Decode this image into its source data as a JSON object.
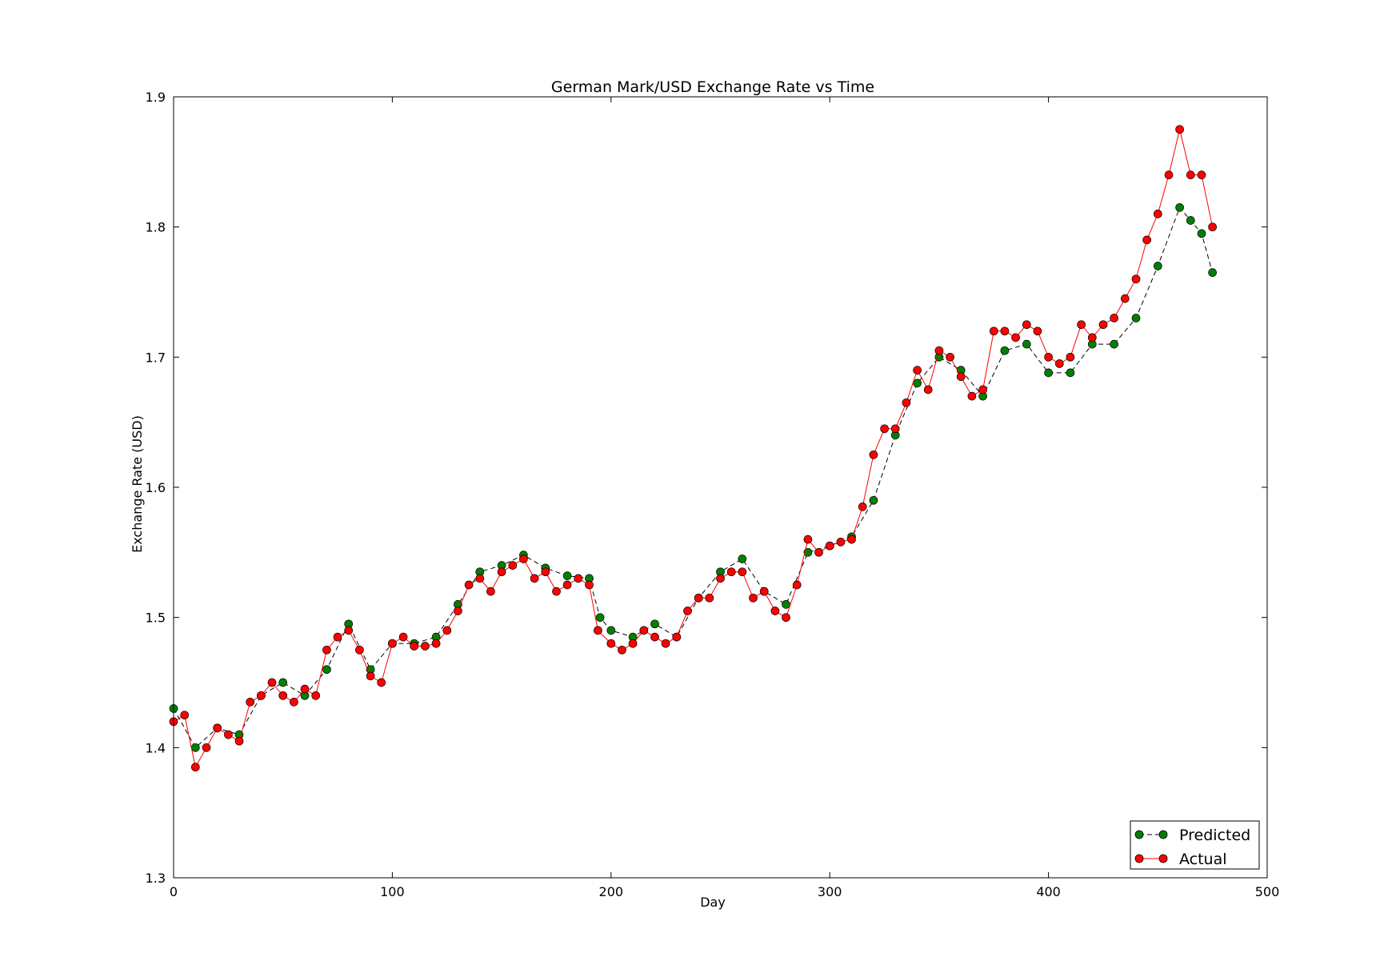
{
  "chart_data": {
    "type": "line",
    "title": "German Mark/USD Exchange Rate vs Time",
    "xlabel": "Day",
    "ylabel": "Exchange Rate (USD)",
    "xlim": [
      0,
      500
    ],
    "ylim": [
      1.3,
      1.9
    ],
    "xticks": [
      0,
      100,
      200,
      300,
      400,
      500
    ],
    "xtick_labels": [
      "0",
      "100",
      "200",
      "300",
      "400",
      "500"
    ],
    "yticks": [
      1.3,
      1.4,
      1.5,
      1.6,
      1.7,
      1.8,
      1.9
    ],
    "ytick_labels": [
      "1.3",
      "1.4",
      "1.5",
      "1.6",
      "1.7",
      "1.8",
      "1.9"
    ],
    "grid": false,
    "legend_position": "lower-right",
    "series": [
      {
        "name": "Predicted",
        "color": "#008000",
        "line_style": "dashed",
        "marker": "circle",
        "x": [
          0,
          10,
          20,
          30,
          40,
          50,
          60,
          70,
          80,
          90,
          100,
          110,
          120,
          130,
          140,
          150,
          160,
          170,
          180,
          190,
          195,
          200,
          210,
          220,
          230,
          240,
          250,
          260,
          270,
          280,
          290,
          300,
          310,
          320,
          330,
          340,
          350,
          360,
          370,
          380,
          390,
          400,
          410,
          420,
          430,
          440,
          450,
          460,
          465,
          470,
          475
        ],
        "y": [
          1.43,
          1.4,
          1.415,
          1.41,
          1.44,
          1.45,
          1.44,
          1.46,
          1.495,
          1.46,
          1.48,
          1.48,
          1.485,
          1.51,
          1.535,
          1.54,
          1.548,
          1.538,
          1.532,
          1.53,
          1.5,
          1.49,
          1.485,
          1.495,
          1.485,
          1.515,
          1.535,
          1.545,
          1.52,
          1.51,
          1.55,
          1.555,
          1.562,
          1.59,
          1.64,
          1.68,
          1.7,
          1.69,
          1.67,
          1.705,
          1.71,
          1.688,
          1.688,
          1.71,
          1.71,
          1.73,
          1.77,
          1.815,
          1.805,
          1.795,
          1.765
        ]
      },
      {
        "name": "Actual",
        "color": "#ff0000",
        "line_style": "solid",
        "marker": "circle",
        "x": [
          0,
          5,
          10,
          15,
          20,
          25,
          30,
          35,
          40,
          45,
          50,
          55,
          60,
          65,
          70,
          75,
          80,
          85,
          90,
          95,
          100,
          105,
          110,
          115,
          120,
          125,
          130,
          135,
          140,
          145,
          150,
          155,
          160,
          165,
          170,
          175,
          180,
          185,
          190,
          194,
          200,
          205,
          210,
          215,
          220,
          225,
          230,
          235,
          240,
          245,
          250,
          255,
          260,
          265,
          270,
          275,
          280,
          285,
          290,
          295,
          300,
          305,
          310,
          315,
          320,
          325,
          330,
          335,
          340,
          345,
          350,
          355,
          360,
          365,
          370,
          375,
          380,
          385,
          390,
          395,
          400,
          405,
          410,
          415,
          420,
          425,
          430,
          435,
          440,
          445,
          450,
          455,
          460,
          465,
          470,
          475
        ],
        "y": [
          1.42,
          1.425,
          1.385,
          1.4,
          1.415,
          1.41,
          1.405,
          1.435,
          1.44,
          1.45,
          1.44,
          1.435,
          1.445,
          1.44,
          1.475,
          1.485,
          1.49,
          1.475,
          1.455,
          1.45,
          1.48,
          1.485,
          1.478,
          1.478,
          1.48,
          1.49,
          1.505,
          1.525,
          1.53,
          1.52,
          1.535,
          1.54,
          1.545,
          1.53,
          1.535,
          1.52,
          1.525,
          1.53,
          1.525,
          1.49,
          1.48,
          1.475,
          1.48,
          1.49,
          1.485,
          1.48,
          1.485,
          1.505,
          1.515,
          1.515,
          1.53,
          1.535,
          1.535,
          1.515,
          1.52,
          1.505,
          1.5,
          1.525,
          1.56,
          1.55,
          1.555,
          1.558,
          1.56,
          1.585,
          1.625,
          1.645,
          1.645,
          1.665,
          1.69,
          1.675,
          1.705,
          1.7,
          1.685,
          1.67,
          1.675,
          1.72,
          1.72,
          1.715,
          1.725,
          1.72,
          1.7,
          1.695,
          1.7,
          1.725,
          1.715,
          1.725,
          1.73,
          1.745,
          1.76,
          1.79,
          1.81,
          1.84,
          1.875,
          1.84,
          1.84,
          1.8
        ]
      }
    ]
  }
}
